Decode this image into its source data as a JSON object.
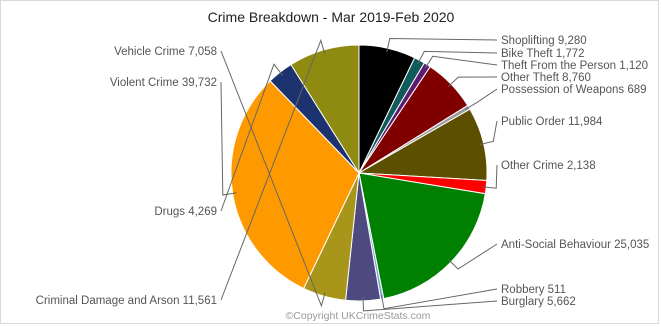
{
  "chart_data": {
    "type": "pie",
    "title": "Crime Breakdown - Mar 2019-Feb 2020",
    "credit": "©Copyright UKCrimeStats.com",
    "slices": [
      {
        "label": "Shoplifting",
        "value": 9280,
        "text": "Shoplifting 9,280",
        "color": "#000000"
      },
      {
        "label": "Bike Theft",
        "value": 1772,
        "text": "Bike Theft 1,772",
        "color": "#0f5a5a"
      },
      {
        "label": "Theft From the Person",
        "value": 1120,
        "text": "Theft From the Person 1,120",
        "color": "#5c1a70"
      },
      {
        "label": "Other Theft",
        "value": 8760,
        "text": "Other Theft 8,760",
        "color": "#800000"
      },
      {
        "label": "Possession of Weapons",
        "value": 689,
        "text": "Possession of Weapons 689",
        "color": "#9a9a9a"
      },
      {
        "label": "Public Order",
        "value": 11984,
        "text": "Public Order 11,984",
        "color": "#5c4f00"
      },
      {
        "label": "Other Crime",
        "value": 2138,
        "text": "Other Crime 2,138",
        "color": "#ff0000"
      },
      {
        "label": "Anti-Social Behaviour",
        "value": 25035,
        "text": "Anti-Social Behaviour 25,035",
        "color": "#008000"
      },
      {
        "label": "Robbery",
        "value": 511,
        "text": "Robbery 511",
        "color": "#7fa8d8"
      },
      {
        "label": "Burglary",
        "value": 5662,
        "text": "Burglary 5,662",
        "color": "#4e4a80"
      },
      {
        "label": "Vehicle Crime",
        "value": 7058,
        "text": "Vehicle Crime 7,058",
        "color": "#a8961a"
      },
      {
        "label": "Violent Crime",
        "value": 39732,
        "text": "Violent Crime 39,732",
        "color": "#ff9900"
      },
      {
        "label": "Drugs",
        "value": 4269,
        "text": "Drugs 4,269",
        "color": "#1c3370"
      },
      {
        "label": "Criminal Damage and Arson",
        "value": 11561,
        "text": "Criminal Damage and Arson 11,561",
        "color": "#8f8a10"
      }
    ]
  }
}
